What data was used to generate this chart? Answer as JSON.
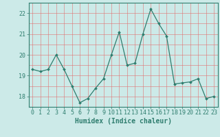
{
  "x": [
    0,
    1,
    2,
    3,
    4,
    5,
    6,
    7,
    8,
    9,
    10,
    11,
    12,
    13,
    14,
    15,
    16,
    17,
    18,
    19,
    20,
    21,
    22,
    23
  ],
  "y": [
    19.3,
    19.2,
    19.3,
    20.0,
    19.3,
    18.5,
    17.7,
    17.9,
    18.4,
    18.85,
    20.0,
    21.1,
    19.5,
    19.6,
    21.0,
    22.2,
    21.5,
    20.9,
    18.6,
    18.65,
    18.7,
    18.85,
    17.9,
    18.0
  ],
  "line_color": "#2e7d6e",
  "marker": "D",
  "marker_size": 2.0,
  "bg_color": "#cceae8",
  "grid_color": "#e07070",
  "axis_color": "#2e7d6e",
  "tick_color": "#2e7d6e",
  "xlabel": "Humidex (Indice chaleur)",
  "ylim": [
    17.5,
    22.5
  ],
  "xlim": [
    -0.5,
    23.5
  ],
  "yticks": [
    18,
    19,
    20,
    21,
    22
  ],
  "xticks": [
    0,
    1,
    2,
    3,
    4,
    5,
    6,
    7,
    8,
    9,
    10,
    11,
    12,
    13,
    14,
    15,
    16,
    17,
    18,
    19,
    20,
    21,
    22,
    23
  ],
  "xtick_labels": [
    "0",
    "1",
    "2",
    "3",
    "4",
    "5",
    "6",
    "7",
    "8",
    "9",
    "10",
    "11",
    "12",
    "13",
    "14",
    "15",
    "16",
    "17",
    "18",
    "19",
    "20",
    "21",
    "22",
    "23"
  ],
  "label_fontsize": 7.0,
  "tick_fontsize": 6.0
}
